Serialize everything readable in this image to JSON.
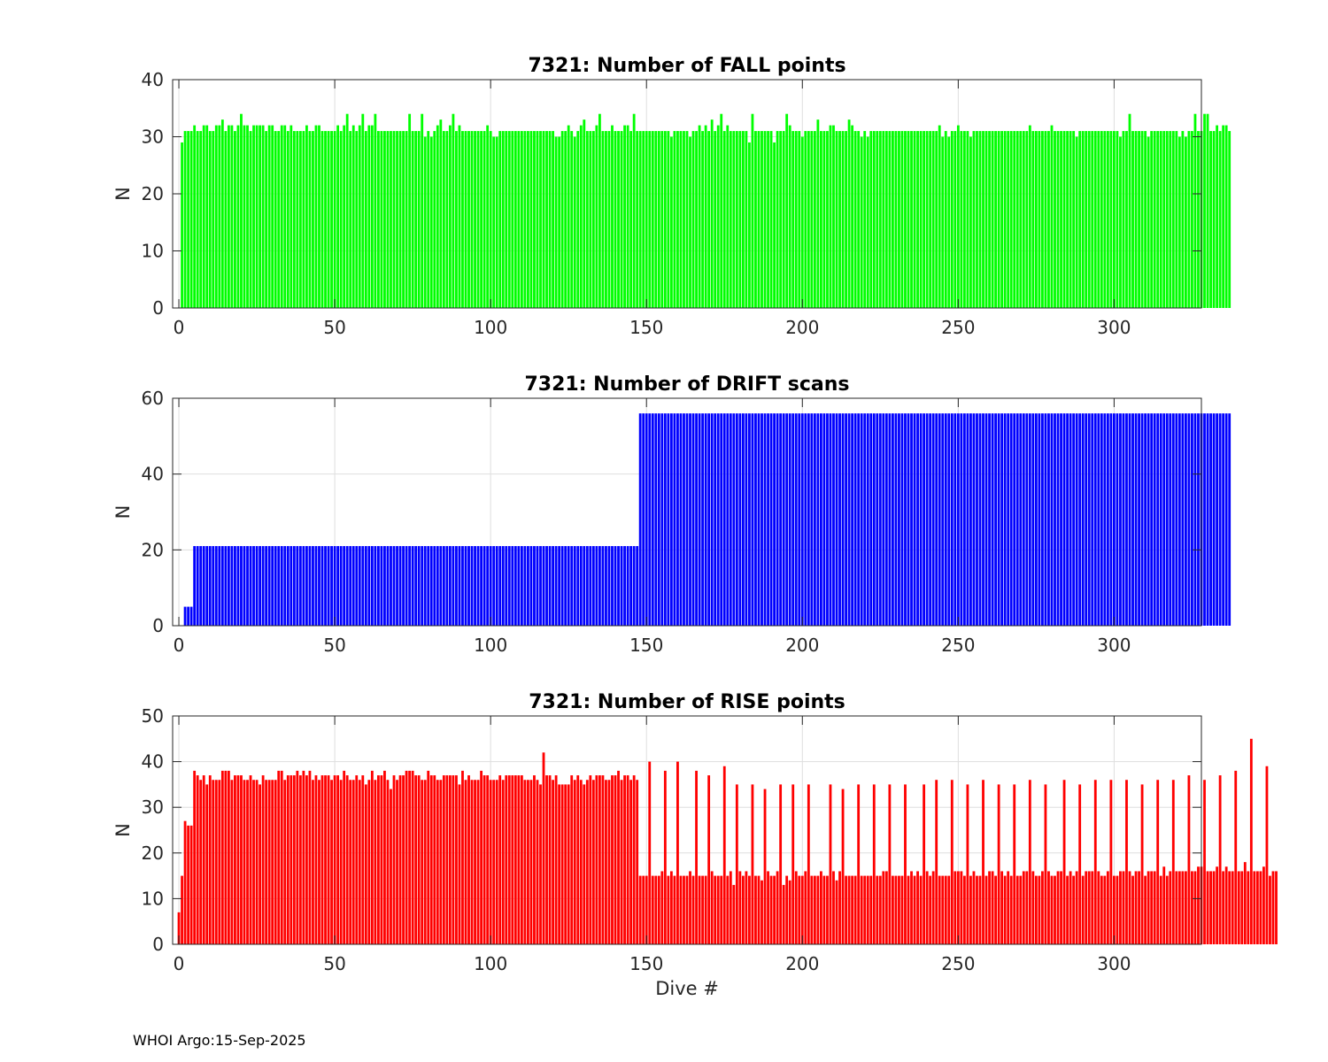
{
  "footer": "WHOI Argo:15-Sep-2025",
  "colors": {
    "fall": "#00ff00",
    "drift": "#0000ff",
    "rise": "#ff0000",
    "axis": "#262626",
    "grid": "#dedede"
  },
  "chart_data": [
    {
      "type": "bar",
      "title": "7321: Number of FALL points",
      "xlabel": "",
      "ylabel": "N",
      "xlim": [
        -2,
        328
      ],
      "ylim": [
        0,
        40
      ],
      "xticks": [
        "0",
        "50",
        "100",
        "150",
        "200",
        "250",
        "300"
      ],
      "yticks": [
        "0",
        "10",
        "20",
        "30",
        "40"
      ],
      "x_start": 1,
      "values": [
        29,
        31,
        31,
        31,
        32,
        31,
        31,
        32,
        32,
        31,
        31,
        32,
        32,
        33,
        31,
        32,
        32,
        31,
        32,
        34,
        32,
        32,
        31,
        32,
        32,
        32,
        32,
        31,
        32,
        32,
        31,
        31,
        32,
        32,
        31,
        32,
        31,
        31,
        31,
        31,
        32,
        31,
        31,
        32,
        32,
        31,
        31,
        31,
        31,
        31,
        32,
        31,
        32,
        34,
        31,
        32,
        31,
        32,
        34,
        31,
        32,
        32,
        34,
        31,
        31,
        31,
        31,
        31,
        31,
        31,
        31,
        31,
        31,
        34,
        31,
        31,
        31,
        34,
        30,
        31,
        30,
        31,
        32,
        33,
        31,
        31,
        32,
        34,
        31,
        32,
        31,
        31,
        31,
        31,
        31,
        31,
        31,
        31,
        32,
        31,
        30,
        30,
        31,
        31,
        31,
        31,
        31,
        31,
        31,
        31,
        31,
        31,
        31,
        31,
        31,
        31,
        31,
        31,
        31,
        31,
        30,
        30,
        31,
        31,
        32,
        31,
        30,
        31,
        32,
        33,
        31,
        31,
        31,
        32,
        34,
        31,
        31,
        31,
        32,
        31,
        31,
        31,
        32,
        32,
        31,
        34,
        31,
        31,
        31,
        31,
        31,
        31,
        31,
        31,
        31,
        31,
        31,
        30,
        31,
        31,
        31,
        31,
        31,
        30,
        31,
        31,
        32,
        31,
        32,
        31,
        33,
        31,
        32,
        34,
        31,
        32,
        31,
        31,
        31,
        31,
        31,
        31,
        29,
        34,
        31,
        31,
        31,
        31,
        31,
        31,
        29,
        31,
        31,
        31,
        34,
        32,
        31,
        31,
        31,
        30,
        31,
        31,
        31,
        31,
        33,
        31,
        31,
        31,
        32,
        32,
        31,
        31,
        31,
        31,
        33,
        32,
        31,
        31,
        30,
        31,
        30,
        31,
        31,
        31,
        31,
        31,
        31,
        31,
        31,
        31,
        31,
        31,
        31,
        31,
        31,
        31,
        31,
        31,
        31,
        31,
        31,
        31,
        31,
        32,
        30,
        31,
        30,
        31,
        31,
        32,
        31,
        31,
        31,
        30,
        31,
        31,
        31,
        31,
        31,
        31,
        31,
        31,
        31,
        31,
        31,
        31,
        31,
        31,
        31,
        31,
        31,
        31,
        32,
        31,
        31,
        31,
        31,
        31,
        31,
        32,
        31,
        31,
        31,
        31,
        31,
        31,
        31,
        30,
        31,
        31,
        31,
        31,
        31,
        31,
        31,
        31,
        31,
        31,
        31,
        31,
        31,
        30,
        31,
        31,
        34,
        31,
        31,
        31,
        31,
        31,
        30,
        31,
        31,
        31,
        31,
        31,
        31,
        31,
        31,
        31,
        30,
        31,
        30,
        31,
        31,
        34,
        31,
        31,
        34,
        34,
        31,
        31,
        32,
        31,
        32,
        32,
        31
      ]
    },
    {
      "type": "bar",
      "title": "7321: Number of DRIFT scans",
      "xlabel": "",
      "ylabel": "N",
      "xlim": [
        -2,
        328
      ],
      "ylim": [
        0,
        60
      ],
      "xticks": [
        "0",
        "50",
        "100",
        "150",
        "200",
        "250",
        "300"
      ],
      "yticks": [
        "0",
        "20",
        "40",
        "60"
      ],
      "x_start": 1,
      "values": [
        0,
        5,
        5,
        5,
        21,
        21,
        21,
        21,
        21,
        21,
        21,
        21,
        21,
        21,
        21,
        21,
        21,
        21,
        21,
        21,
        21,
        21,
        21,
        21,
        21,
        21,
        21,
        21,
        21,
        21,
        21,
        21,
        21,
        21,
        21,
        21,
        21,
        21,
        21,
        21,
        21,
        21,
        21,
        21,
        21,
        21,
        21,
        21,
        21,
        21,
        21,
        21,
        21,
        21,
        21,
        21,
        21,
        21,
        21,
        21,
        21,
        21,
        21,
        21,
        21,
        21,
        21,
        21,
        21,
        21,
        21,
        21,
        21,
        21,
        21,
        21,
        21,
        21,
        21,
        21,
        21,
        21,
        21,
        21,
        21,
        21,
        21,
        21,
        21,
        21,
        21,
        21,
        21,
        21,
        21,
        21,
        21,
        21,
        21,
        21,
        21,
        21,
        21,
        21,
        21,
        21,
        21,
        21,
        21,
        21,
        21,
        21,
        21,
        21,
        21,
        21,
        21,
        21,
        21,
        21,
        21,
        21,
        21,
        21,
        21,
        21,
        21,
        21,
        21,
        21,
        21,
        21,
        21,
        21,
        21,
        21,
        21,
        21,
        21,
        21,
        21,
        21,
        21,
        21,
        21,
        21,
        21,
        56,
        56,
        56,
        56,
        56,
        56,
        56,
        56,
        56,
        56,
        56,
        56,
        56,
        56,
        56,
        56,
        56,
        56,
        56,
        56,
        56,
        56,
        56,
        56,
        56,
        56,
        56,
        56,
        56,
        56,
        56,
        56,
        56,
        56,
        56,
        56,
        56,
        56,
        56,
        56,
        56,
        56,
        56,
        56,
        56,
        56,
        56,
        56,
        56,
        56,
        56,
        56,
        56,
        56,
        56,
        56,
        56,
        56,
        56,
        56,
        56,
        56,
        56,
        56,
        56,
        56,
        56,
        56,
        56,
        56,
        56,
        56,
        56,
        56,
        56,
        56,
        56,
        56,
        56,
        56,
        56,
        56,
        56,
        56,
        56,
        56,
        56,
        56,
        56,
        56,
        56,
        56,
        56,
        56,
        56,
        56,
        56,
        56,
        56,
        56,
        56,
        56,
        56,
        56,
        56,
        56,
        56,
        56,
        56,
        56,
        56,
        56,
        56,
        56,
        56,
        56,
        56,
        56,
        56,
        56,
        56,
        56,
        56,
        56,
        56,
        56,
        56,
        56,
        56,
        56,
        56,
        56,
        56,
        56,
        56,
        56,
        56,
        56,
        56,
        56,
        56,
        56,
        56,
        56,
        56,
        56,
        56,
        56,
        56,
        56,
        56,
        56,
        56,
        56,
        56,
        56,
        56,
        56,
        56,
        56,
        56,
        56,
        56,
        56,
        56,
        56,
        56,
        56,
        56,
        56,
        56,
        56,
        56,
        56,
        56,
        56,
        56,
        56,
        56,
        56,
        56,
        56,
        56,
        56,
        56,
        56,
        56,
        56,
        56,
        56
      ]
    },
    {
      "type": "bar",
      "title": "7321: Number of RISE points",
      "xlabel": "Dive #",
      "ylabel": "N",
      "xlim": [
        -2,
        328
      ],
      "ylim": [
        0,
        50
      ],
      "xticks": [
        "0",
        "50",
        "100",
        "150",
        "200",
        "250",
        "300"
      ],
      "yticks": [
        "0",
        "10",
        "20",
        "30",
        "40",
        "50"
      ],
      "x_start": 0,
      "values": [
        7,
        15,
        27,
        26,
        26,
        38,
        37,
        36,
        37,
        35,
        37,
        36,
        36,
        36,
        38,
        38,
        38,
        36,
        37,
        37,
        37,
        36,
        36,
        37,
        36,
        36,
        35,
        37,
        36,
        36,
        36,
        36,
        38,
        38,
        36,
        37,
        37,
        37,
        38,
        37,
        38,
        37,
        38,
        36,
        37,
        36,
        37,
        37,
        37,
        36,
        37,
        37,
        36,
        38,
        37,
        36,
        36,
        37,
        36,
        37,
        35,
        36,
        38,
        36,
        37,
        37,
        38,
        36,
        34,
        37,
        36,
        37,
        37,
        38,
        38,
        38,
        37,
        37,
        36,
        36,
        38,
        37,
        37,
        36,
        36,
        37,
        37,
        37,
        37,
        37,
        35,
        38,
        36,
        37,
        36,
        36,
        36,
        38,
        37,
        37,
        36,
        36,
        36,
        37,
        36,
        37,
        37,
        37,
        37,
        37,
        37,
        36,
        36,
        36,
        37,
        36,
        35,
        42,
        37,
        37,
        36,
        37,
        35,
        35,
        35,
        35,
        37,
        36,
        37,
        36,
        35,
        36,
        37,
        36,
        37,
        37,
        37,
        36,
        36,
        37,
        37,
        38,
        36,
        37,
        37,
        36,
        37,
        36,
        15,
        15,
        15,
        40,
        15,
        15,
        15,
        16,
        38,
        15,
        16,
        15,
        40,
        15,
        15,
        15,
        16,
        15,
        38,
        15,
        15,
        15,
        37,
        16,
        15,
        15,
        15,
        39,
        15,
        16,
        13,
        35,
        16,
        15,
        16,
        15,
        35,
        15,
        15,
        14,
        34,
        16,
        15,
        15,
        16,
        35,
        13,
        15,
        14,
        35,
        16,
        15,
        15,
        16,
        35,
        15,
        15,
        15,
        16,
        15,
        15,
        35,
        16,
        14,
        16,
        34,
        15,
        15,
        15,
        15,
        35,
        15,
        15,
        15,
        15,
        35,
        15,
        15,
        16,
        16,
        35,
        15,
        15,
        15,
        15,
        35,
        15,
        16,
        15,
        16,
        15,
        35,
        16,
        15,
        16,
        36,
        15,
        15,
        15,
        15,
        36,
        16,
        16,
        16,
        15,
        35,
        15,
        16,
        15,
        15,
        36,
        15,
        16,
        16,
        15,
        35,
        16,
        15,
        16,
        15,
        35,
        15,
        15,
        16,
        16,
        36,
        16,
        15,
        15,
        16,
        35,
        16,
        15,
        15,
        16,
        16,
        36,
        15,
        16,
        15,
        16,
        35,
        15,
        16,
        16,
        16,
        36,
        16,
        15,
        15,
        16,
        36,
        15,
        15,
        16,
        16,
        36,
        16,
        15,
        16,
        16,
        35,
        15,
        16,
        16,
        16,
        36,
        15,
        17,
        15,
        16,
        36,
        16,
        16,
        16,
        16,
        37,
        16,
        16,
        17,
        17,
        36,
        16,
        16,
        16,
        17,
        37,
        16,
        17,
        16,
        16,
        38,
        16,
        16,
        18,
        16,
        45,
        16,
        16,
        16,
        17,
        39,
        15,
        16,
        16
      ]
    }
  ]
}
